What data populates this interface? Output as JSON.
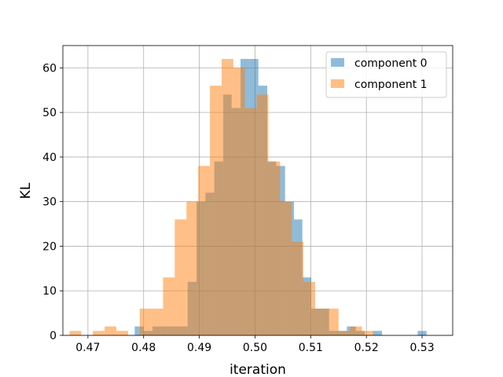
{
  "chart_data": {
    "type": "histogram",
    "title": "",
    "xlabel": "iteration",
    "ylabel": "KL",
    "xlim": [
      0.4655,
      0.5355
    ],
    "ylim": [
      0,
      65
    ],
    "xticks": [
      "0.47",
      "0.48",
      "0.49",
      "0.50",
      "0.51",
      "0.52",
      "0.53"
    ],
    "xtick_values": [
      0.47,
      0.48,
      0.49,
      0.5,
      0.51,
      0.52,
      0.53
    ],
    "yticks": [
      "0",
      "10",
      "20",
      "30",
      "40",
      "50",
      "60"
    ],
    "ytick_values": [
      0,
      10,
      20,
      30,
      40,
      50,
      60
    ],
    "grid": true,
    "legend_position": "top-right",
    "alpha": 0.5,
    "series": [
      {
        "name": "component 0",
        "color": "#1f77b4",
        "bin_edges": [
          0.4784,
          0.48,
          0.4816,
          0.4831,
          0.4847,
          0.4863,
          0.4879,
          0.4895,
          0.4911,
          0.4927,
          0.4943,
          0.4958,
          0.4974,
          0.499,
          0.5006,
          0.5022,
          0.5038,
          0.5054,
          0.507,
          0.5085,
          0.5101,
          0.5117,
          0.5133,
          0.5149,
          0.5165,
          0.5181,
          0.5197,
          0.5212,
          0.5228,
          0.5244,
          0.526,
          0.5276,
          0.5292,
          0.5308,
          0.5324
        ],
        "counts": [
          2,
          1,
          2,
          2,
          2,
          2,
          12,
          30,
          32,
          39,
          54,
          51,
          62,
          62,
          56,
          39,
          38,
          30,
          26,
          13,
          6,
          6,
          1,
          1,
          2,
          1,
          0,
          1,
          0,
          0,
          0,
          0,
          1,
          0
        ]
      },
      {
        "name": "component 1",
        "color": "#ff7f0e",
        "bin_edges": [
          0.4667,
          0.4688,
          0.4709,
          0.473,
          0.4751,
          0.4772,
          0.4793,
          0.4814,
          0.4835,
          0.4856,
          0.4877,
          0.4898,
          0.4919,
          0.494,
          0.4961,
          0.4982,
          0.5003,
          0.5024,
          0.5045,
          0.5066,
          0.5087,
          0.5108,
          0.5129,
          0.515,
          0.5171,
          0.5192,
          0.5213,
          0.5234
        ],
        "counts": [
          1,
          0,
          1,
          2,
          1,
          0,
          6,
          6,
          13,
          26,
          30,
          38,
          56,
          62,
          60,
          51,
          54,
          39,
          30,
          21,
          12,
          6,
          6,
          1,
          2,
          1,
          0
        ]
      }
    ]
  }
}
